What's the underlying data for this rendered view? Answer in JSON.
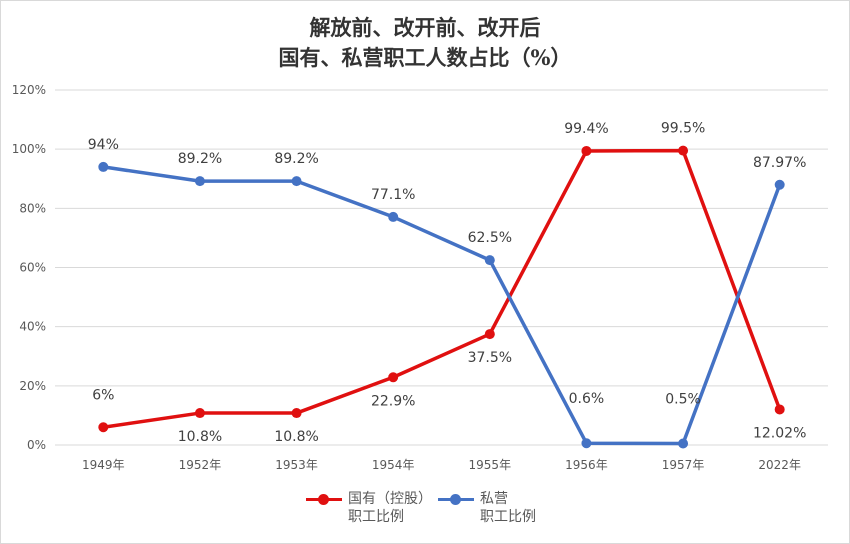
{
  "chart_data": {
    "type": "line",
    "title": [
      "解放前、改开前、改开后",
      "国有、私营职工人数占比（%）"
    ],
    "categories": [
      "1949年",
      "1952年",
      "1953年",
      "1954年",
      "1955年",
      "1956年",
      "1957年",
      "2022年"
    ],
    "ylim": [
      0,
      120
    ],
    "yticks": [
      "0%",
      "20%",
      "40%",
      "60%",
      "80%",
      "100%",
      "120%"
    ],
    "grid": true,
    "legend_position": "bottom",
    "series": [
      {
        "name": "国有（控股）职工比例",
        "legend_lines": [
          "国有（控股）",
          "职工比例"
        ],
        "color": "#e01010",
        "values": [
          6,
          10.8,
          10.8,
          22.9,
          37.5,
          99.4,
          99.5,
          12.02
        ],
        "labels": [
          "6%",
          "10.8%",
          "10.8%",
          "22.9%",
          "37.5%",
          "99.4%",
          "99.5%",
          "12.02%"
        ]
      },
      {
        "name": "私营职工比例",
        "legend_lines": [
          "私营",
          "职工比例"
        ],
        "color": "#4472c4",
        "values": [
          94,
          89.2,
          89.2,
          77.1,
          62.5,
          0.6,
          0.5,
          87.97
        ],
        "labels": [
          "94%",
          "89.2%",
          "89.2%",
          "77.1%",
          "62.5%",
          "0.6%",
          "0.5%",
          "87.97%"
        ]
      }
    ]
  }
}
